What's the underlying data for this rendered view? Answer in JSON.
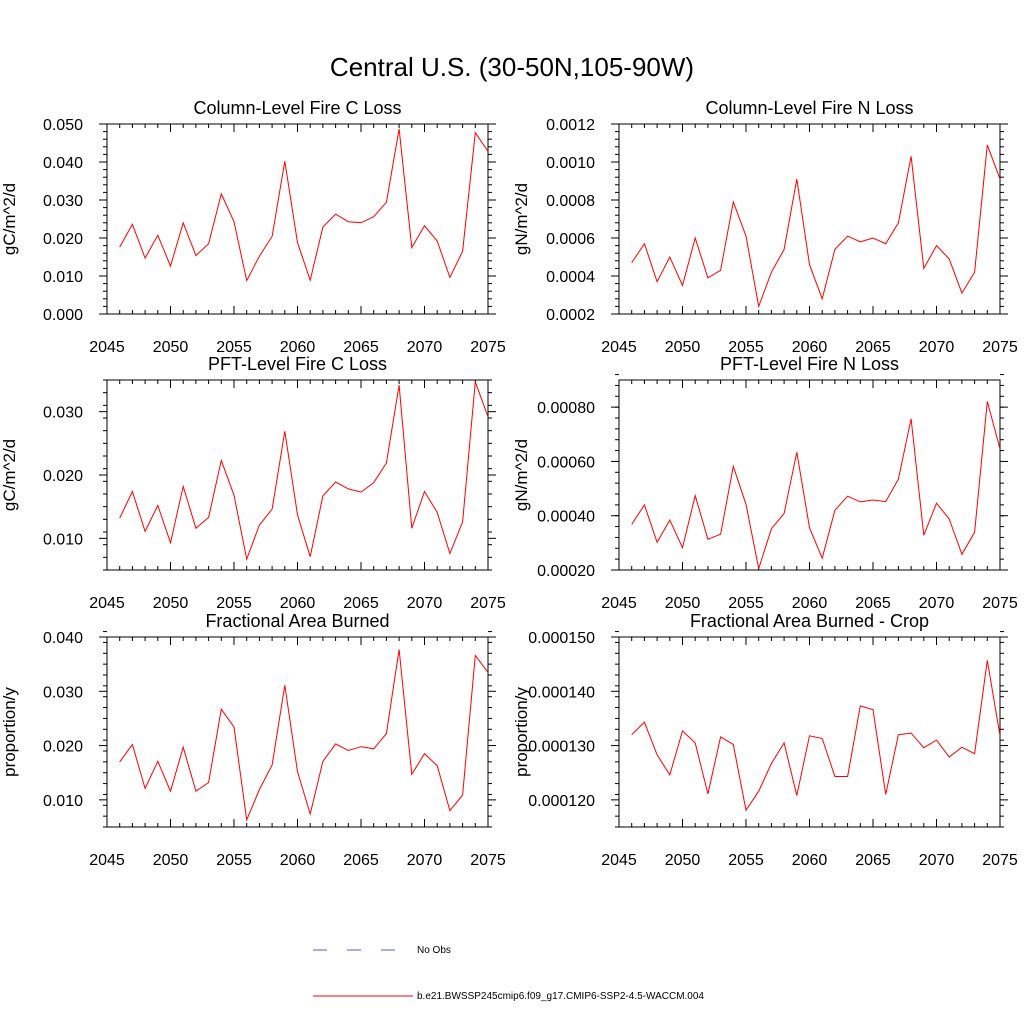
{
  "title": "Central U.S. (30-50N,105-90W)",
  "legend": {
    "items": [
      {
        "label": "No Obs",
        "color": "#5a5ac8",
        "dash": "dashed"
      },
      {
        "label": "b.e21.BWSSP245cmip6.f09_g17.CMIP6-SSP2-4.5-WACCM.004",
        "color": "#ff0000",
        "dash": "solid"
      }
    ]
  },
  "chart_data": [
    {
      "type": "line",
      "title": "Column-Level Fire C Loss",
      "ylabel": "gC/m^2/d",
      "xlim": [
        2045,
        2075
      ],
      "ylim": [
        0.0,
        0.05
      ],
      "xticks": [
        "2045",
        "2050",
        "2055",
        "2060",
        "2065",
        "2070",
        "2075"
      ],
      "yticks": [
        0.0,
        0.01,
        0.02,
        0.03,
        0.04,
        0.05
      ],
      "ytick_labels": [
        "0.000",
        "0.010",
        "0.020",
        "0.030",
        "0.040",
        "0.050"
      ],
      "x": [
        2046,
        2047,
        2048,
        2049,
        2050,
        2051,
        2052,
        2053,
        2054,
        2055,
        2056,
        2057,
        2058,
        2059,
        2060,
        2061,
        2062,
        2063,
        2064,
        2065,
        2066,
        2067,
        2068,
        2069,
        2070,
        2071,
        2072,
        2073,
        2074,
        2075
      ],
      "series": [
        {
          "name": "b.e21.BWSSP245cmip6.f09_g17.CMIP6-SSP2-4.5-WACCM.004",
          "color": "#ff0000",
          "values": [
            0.0176,
            0.0236,
            0.0147,
            0.0207,
            0.0126,
            0.024,
            0.0154,
            0.0185,
            0.0316,
            0.0243,
            0.0088,
            0.0152,
            0.0204,
            0.0402,
            0.0188,
            0.0089,
            0.0229,
            0.0263,
            0.0243,
            0.024,
            0.0256,
            0.0294,
            0.0487,
            0.0175,
            0.0232,
            0.0192,
            0.0096,
            0.0165,
            0.0477,
            0.0428
          ]
        }
      ]
    },
    {
      "type": "line",
      "title": "Column-Level Fire N Loss",
      "ylabel": "gN/m^2/d",
      "xlim": [
        2045,
        2075
      ],
      "ylim": [
        0.0002,
        0.0012
      ],
      "xticks": [
        "2045",
        "2050",
        "2055",
        "2060",
        "2065",
        "2070",
        "2075"
      ],
      "yticks": [
        0.0002,
        0.0004,
        0.0006,
        0.0008,
        0.001,
        0.0012
      ],
      "ytick_labels": [
        "0.0002",
        "0.0004",
        "0.0006",
        "0.0008",
        "0.0010",
        "0.0012"
      ],
      "x": [
        2046,
        2047,
        2048,
        2049,
        2050,
        2051,
        2052,
        2053,
        2054,
        2055,
        2056,
        2057,
        2058,
        2059,
        2060,
        2061,
        2062,
        2063,
        2064,
        2065,
        2066,
        2067,
        2068,
        2069,
        2070,
        2071,
        2072,
        2073,
        2074,
        2075
      ],
      "series": [
        {
          "name": "b.e21.BWSSP245cmip6.f09_g17.CMIP6-SSP2-4.5-WACCM.004",
          "color": "#ff0000",
          "values": [
            0.00047,
            0.00057,
            0.00037,
            0.0005,
            0.00035,
            0.0006,
            0.00039,
            0.00043,
            0.00079,
            0.00061,
            0.00024,
            0.00042,
            0.00054,
            0.00091,
            0.00046,
            0.00028,
            0.00054,
            0.00061,
            0.00058,
            0.0006,
            0.00057,
            0.00068,
            0.00103,
            0.00044,
            0.00056,
            0.00049,
            0.00031,
            0.00042,
            0.00109,
            0.00091
          ]
        }
      ]
    },
    {
      "type": "line",
      "title": "PFT-Level Fire C Loss",
      "ylabel": "gC/m^2/d",
      "xlim": [
        2045,
        2075
      ],
      "ylim": [
        0.005,
        0.035
      ],
      "xticks": [
        "2045",
        "2050",
        "2055",
        "2060",
        "2065",
        "2070",
        "2075"
      ],
      "yticks": [
        0.01,
        0.02,
        0.03
      ],
      "ytick_labels": [
        "0.010",
        "0.020",
        "0.030"
      ],
      "x": [
        2046,
        2047,
        2048,
        2049,
        2050,
        2051,
        2052,
        2053,
        2054,
        2055,
        2056,
        2057,
        2058,
        2059,
        2060,
        2061,
        2062,
        2063,
        2064,
        2065,
        2066,
        2067,
        2068,
        2069,
        2070,
        2071,
        2072,
        2073,
        2074,
        2075
      ],
      "series": [
        {
          "name": "b.e21.BWSSP245cmip6.f09_g17.CMIP6-SSP2-4.5-WACCM.004",
          "color": "#ff0000",
          "values": [
            0.0132,
            0.0174,
            0.0111,
            0.0152,
            0.0093,
            0.0182,
            0.0116,
            0.0133,
            0.0223,
            0.0168,
            0.0067,
            0.0121,
            0.0146,
            0.0269,
            0.0137,
            0.0071,
            0.0167,
            0.0189,
            0.0178,
            0.0173,
            0.0188,
            0.0219,
            0.0342,
            0.0116,
            0.0174,
            0.0141,
            0.0076,
            0.0126,
            0.0347,
            0.0292
          ]
        }
      ]
    },
    {
      "type": "line",
      "title": "PFT-Level Fire N Loss",
      "ylabel": "gN/m^2/d",
      "xlim": [
        2045,
        2075
      ],
      "ylim": [
        0.0002,
        0.0009
      ],
      "xticks": [
        "2045",
        "2050",
        "2055",
        "2060",
        "2065",
        "2070",
        "2075"
      ],
      "yticks": [
        0.0002,
        0.0004,
        0.0006,
        0.0008
      ],
      "ytick_labels": [
        "0.00020",
        "0.00040",
        "0.00060",
        "0.00080"
      ],
      "x": [
        2046,
        2047,
        2048,
        2049,
        2050,
        2051,
        2052,
        2053,
        2054,
        2055,
        2056,
        2057,
        2058,
        2059,
        2060,
        2061,
        2062,
        2063,
        2064,
        2065,
        2066,
        2067,
        2068,
        2069,
        2070,
        2071,
        2072,
        2073,
        2074,
        2075
      ],
      "series": [
        {
          "name": "b.e21.BWSSP245cmip6.f09_g17.CMIP6-SSP2-4.5-WACCM.004",
          "color": "#ff0000",
          "values": [
            0.000368,
            0.00044,
            0.000302,
            0.000384,
            0.000282,
            0.000474,
            0.000313,
            0.000332,
            0.000582,
            0.000442,
            0.000205,
            0.000352,
            0.000408,
            0.000634,
            0.000356,
            0.000243,
            0.00042,
            0.000472,
            0.000451,
            0.000458,
            0.000452,
            0.000535,
            0.000757,
            0.000328,
            0.000446,
            0.000388,
            0.000258,
            0.000339,
            0.000821,
            0.000646
          ]
        }
      ]
    },
    {
      "type": "line",
      "title": "Fractional Area Burned",
      "ylabel": "proportion/y",
      "xlim": [
        2045,
        2075
      ],
      "ylim": [
        0.005,
        0.04
      ],
      "xticks": [
        "2045",
        "2050",
        "2055",
        "2060",
        "2065",
        "2070",
        "2075"
      ],
      "yticks": [
        0.01,
        0.02,
        0.03,
        0.04
      ],
      "ytick_labels": [
        "0.010",
        "0.020",
        "0.030",
        "0.040"
      ],
      "x": [
        2046,
        2047,
        2048,
        2049,
        2050,
        2051,
        2052,
        2053,
        2054,
        2055,
        2056,
        2057,
        2058,
        2059,
        2060,
        2061,
        2062,
        2063,
        2064,
        2065,
        2066,
        2067,
        2068,
        2069,
        2070,
        2071,
        2072,
        2073,
        2074,
        2075
      ],
      "series": [
        {
          "name": "b.e21.BWSSP245cmip6.f09_g17.CMIP6-SSP2-4.5-WACCM.004",
          "color": "#ff0000",
          "values": [
            0.017,
            0.0202,
            0.0121,
            0.0171,
            0.0116,
            0.0197,
            0.0116,
            0.0132,
            0.0267,
            0.0234,
            0.0063,
            0.0119,
            0.0164,
            0.0311,
            0.0152,
            0.0074,
            0.0171,
            0.0203,
            0.0191,
            0.0198,
            0.0194,
            0.0222,
            0.0377,
            0.0147,
            0.0185,
            0.0163,
            0.008,
            0.0109,
            0.0366,
            0.0335
          ]
        }
      ]
    },
    {
      "type": "line",
      "title": "Fractional Area Burned - Crop",
      "ylabel": "proportion/y",
      "xlim": [
        2045,
        2075
      ],
      "ylim": [
        0.000115,
        0.00015
      ],
      "xticks": [
        "2045",
        "2050",
        "2055",
        "2060",
        "2065",
        "2070",
        "2075"
      ],
      "yticks": [
        0.00012,
        0.00013,
        0.00014,
        0.00015
      ],
      "ytick_labels": [
        "0.000120",
        "0.000130",
        "0.000140",
        "0.000150"
      ],
      "x": [
        2046,
        2047,
        2048,
        2049,
        2050,
        2051,
        2052,
        2053,
        2054,
        2055,
        2056,
        2057,
        2058,
        2059,
        2060,
        2061,
        2062,
        2063,
        2064,
        2065,
        2066,
        2067,
        2068,
        2069,
        2070,
        2071,
        2072,
        2073,
        2074,
        2075
      ],
      "series": [
        {
          "name": "b.e21.BWSSP245cmip6.f09_g17.CMIP6-SSP2-4.5-WACCM.004",
          "color": "#ff0000",
          "values": [
            0.000132,
            0.0001343,
            0.0001283,
            0.0001246,
            0.0001327,
            0.0001305,
            0.0001211,
            0.0001316,
            0.0001302,
            0.0001181,
            0.0001216,
            0.0001267,
            0.0001305,
            0.0001208,
            0.0001318,
            0.0001313,
            0.0001243,
            0.0001243,
            0.0001373,
            0.0001366,
            0.000121,
            0.000132,
            0.0001323,
            0.0001296,
            0.000131,
            0.0001279,
            0.0001297,
            0.0001285,
            0.0001457,
            0.0001318
          ]
        }
      ]
    }
  ]
}
